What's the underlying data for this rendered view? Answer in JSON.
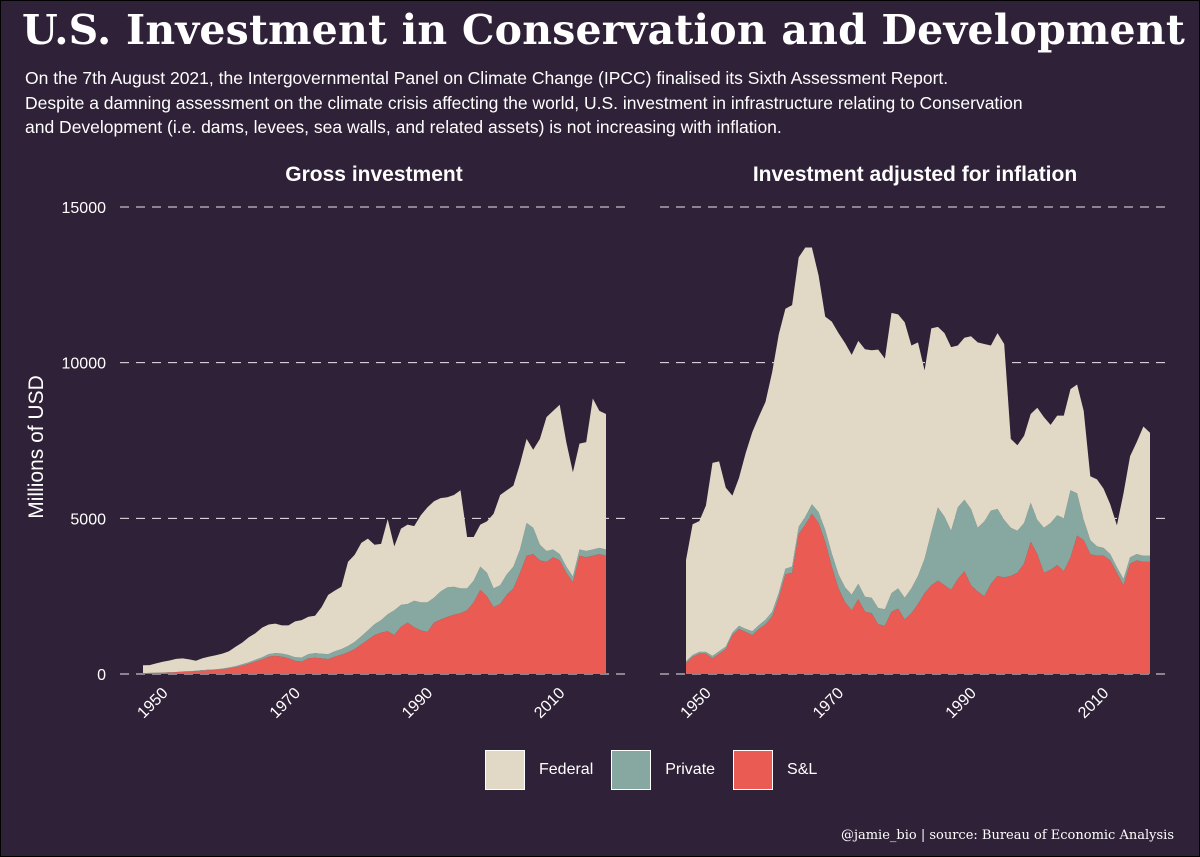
{
  "title": "U.S. Investment in Conservation and Development",
  "subtitle_lines": [
    "On the 7th August 2021, the Intergovernmental Panel on Climate Change (IPCC) finalised its Sixth Assessment Report.",
    "Despite a damning assessment on the climate crisis affecting the world, U.S. investment in infrastructure relating to Conservation",
    "and Development (i.e. dams, levees, sea walls, and related assets) is not increasing with inflation."
  ],
  "caption": "@jamie_bio | source:  Bureau of Economic Analysis",
  "colors": {
    "background": "#2f2137",
    "Federal": "#e1d9c6",
    "Private": "#87a8a0",
    "S&L": "#ea5c53"
  },
  "chart_data": [
    {
      "type": "area",
      "stacked": true,
      "title": "Gross investment",
      "ylabel": "Millions of USD",
      "xlabel": "",
      "ylim": [
        0,
        15000
      ],
      "yticks": [
        0,
        5000,
        10000,
        15000
      ],
      "xticks": [
        1950,
        1970,
        1990,
        2010
      ],
      "grid": "horizontal dashed",
      "legend": "bottom",
      "x": [
        1947,
        1948,
        1949,
        1950,
        1951,
        1952,
        1953,
        1954,
        1955,
        1956,
        1957,
        1958,
        1959,
        1960,
        1961,
        1962,
        1963,
        1964,
        1965,
        1966,
        1967,
        1968,
        1969,
        1970,
        1971,
        1972,
        1973,
        1974,
        1975,
        1976,
        1977,
        1978,
        1979,
        1980,
        1981,
        1982,
        1983,
        1984,
        1985,
        1986,
        1987,
        1988,
        1989,
        1990,
        1991,
        1992,
        1993,
        1994,
        1995,
        1996,
        1997,
        1998,
        1999,
        2000,
        2001,
        2002,
        2003,
        2004,
        2005,
        2006,
        2007,
        2008,
        2009,
        2010,
        2011,
        2012,
        2013,
        2014,
        2015,
        2016,
        2017
      ],
      "series": [
        {
          "name": "S&L",
          "values": [
            25,
            30,
            35,
            40,
            45,
            55,
            70,
            80,
            90,
            110,
            120,
            130,
            150,
            180,
            220,
            270,
            330,
            400,
            470,
            560,
            580,
            560,
            500,
            420,
            400,
            500,
            520,
            500,
            480,
            560,
            620,
            700,
            800,
            950,
            1100,
            1250,
            1330,
            1370,
            1250,
            1520,
            1650,
            1500,
            1400,
            1350,
            1650,
            1750,
            1830,
            1900,
            1950,
            2050,
            2300,
            2700,
            2500,
            2150,
            2250,
            2550,
            2750,
            3250,
            3800,
            3850,
            3650,
            3600,
            3750,
            3650,
            3250,
            2950,
            3800,
            3750,
            3800,
            3850,
            3800
          ]
        },
        {
          "name": "Private",
          "values": [
            5,
            5,
            5,
            5,
            10,
            10,
            10,
            10,
            15,
            15,
            20,
            20,
            25,
            30,
            35,
            40,
            50,
            60,
            70,
            80,
            90,
            100,
            110,
            120,
            130,
            140,
            150,
            150,
            160,
            170,
            180,
            200,
            230,
            260,
            300,
            350,
            400,
            550,
            800,
            700,
            600,
            850,
            900,
            950,
            800,
            900,
            950,
            900,
            800,
            700,
            700,
            750,
            750,
            600,
            600,
            650,
            700,
            750,
            1050,
            850,
            500,
            350,
            250,
            200,
            200,
            180,
            200,
            200,
            200,
            200,
            200
          ]
        },
        {
          "name": "Federal",
          "values": [
            250,
            250,
            300,
            350,
            380,
            420,
            420,
            380,
            320,
            380,
            420,
            450,
            480,
            520,
            620,
            700,
            800,
            850,
            950,
            950,
            950,
            900,
            950,
            1150,
            1200,
            1200,
            1200,
            1500,
            1900,
            1950,
            2000,
            2700,
            2800,
            3000,
            2950,
            2550,
            2450,
            3050,
            2050,
            2450,
            2550,
            2400,
            2800,
            3050,
            3100,
            3000,
            2900,
            2950,
            3150,
            1650,
            1400,
            1350,
            1650,
            2400,
            2900,
            2700,
            2600,
            2750,
            2700,
            2500,
            3400,
            4300,
            4450,
            4800,
            4000,
            3350,
            3400,
            3500,
            4850,
            4400,
            4350
          ]
        }
      ]
    },
    {
      "type": "area",
      "stacked": true,
      "title": "Investment adjusted for inflation",
      "ylabel": "",
      "xlabel": "",
      "ylim": [
        0,
        15000
      ],
      "yticks": [
        0,
        5000,
        10000,
        15000
      ],
      "xticks": [
        1950,
        1970,
        1990,
        2010
      ],
      "grid": "horizontal dashed",
      "legend": "bottom",
      "x": [
        1947,
        1948,
        1949,
        1950,
        1951,
        1952,
        1953,
        1954,
        1955,
        1956,
        1957,
        1958,
        1959,
        1960,
        1961,
        1962,
        1963,
        1964,
        1965,
        1966,
        1967,
        1968,
        1969,
        1970,
        1971,
        1972,
        1973,
        1974,
        1975,
        1976,
        1977,
        1978,
        1979,
        1980,
        1981,
        1982,
        1983,
        1984,
        1985,
        1986,
        1987,
        1988,
        1989,
        1990,
        1991,
        1992,
        1993,
        1994,
        1995,
        1996,
        1997,
        1998,
        1999,
        2000,
        2001,
        2002,
        2003,
        2004,
        2005,
        2006,
        2007,
        2008,
        2009,
        2010,
        2011,
        2012,
        2013,
        2014,
        2015,
        2016,
        2017
      ],
      "series": [
        {
          "name": "S&L",
          "values": [
            350,
            550,
            650,
            650,
            500,
            650,
            800,
            1250,
            1450,
            1350,
            1250,
            1450,
            1600,
            1850,
            2450,
            3200,
            3250,
            4500,
            4800,
            5150,
            4850,
            4250,
            3450,
            2750,
            2300,
            2050,
            2400,
            2000,
            1950,
            1600,
            1550,
            2000,
            2100,
            1750,
            1950,
            2250,
            2600,
            2850,
            3000,
            2850,
            2700,
            3050,
            3300,
            2850,
            2650,
            2500,
            2900,
            3150,
            3100,
            3150,
            3250,
            3550,
            4250,
            3850,
            3250,
            3350,
            3500,
            3300,
            3750,
            4450,
            4300,
            3850,
            3800,
            3800,
            3650,
            3250,
            2850,
            3550,
            3650,
            3600,
            3600
          ]
        },
        {
          "name": "Private",
          "values": [
            60,
            60,
            60,
            60,
            80,
            80,
            80,
            80,
            100,
            100,
            120,
            120,
            140,
            150,
            160,
            180,
            200,
            230,
            250,
            300,
            350,
            380,
            420,
            450,
            480,
            500,
            500,
            480,
            500,
            520,
            530,
            600,
            650,
            700,
            800,
            900,
            1100,
            1700,
            2350,
            2200,
            1900,
            2300,
            2300,
            2450,
            2050,
            2400,
            2350,
            2150,
            1850,
            1550,
            1350,
            1300,
            1250,
            1100,
            1450,
            1500,
            1600,
            1700,
            2150,
            1350,
            650,
            450,
            300,
            250,
            200,
            180,
            200,
            200,
            200,
            200,
            200
          ]
        },
        {
          "name": "Federal",
          "values": [
            3250,
            4200,
            4200,
            4700,
            6200,
            6100,
            5100,
            4400,
            4750,
            5650,
            6400,
            6700,
            7000,
            7700,
            8300,
            8350,
            8400,
            8650,
            8650,
            8250,
            7600,
            6850,
            7450,
            7750,
            7850,
            7700,
            7800,
            7950,
            7950,
            8300,
            8050,
            9000,
            8800,
            8850,
            7800,
            7500,
            6050,
            6550,
            5800,
            5900,
            5900,
            5200,
            5200,
            5550,
            5950,
            5700,
            5300,
            5650,
            5650,
            2850,
            2750,
            2800,
            2850,
            3600,
            3550,
            3150,
            3200,
            3300,
            3250,
            3500,
            3500,
            2050,
            2150,
            1900,
            1600,
            1350,
            2750,
            3250,
            3600,
            4150,
            3950
          ]
        }
      ]
    }
  ]
}
